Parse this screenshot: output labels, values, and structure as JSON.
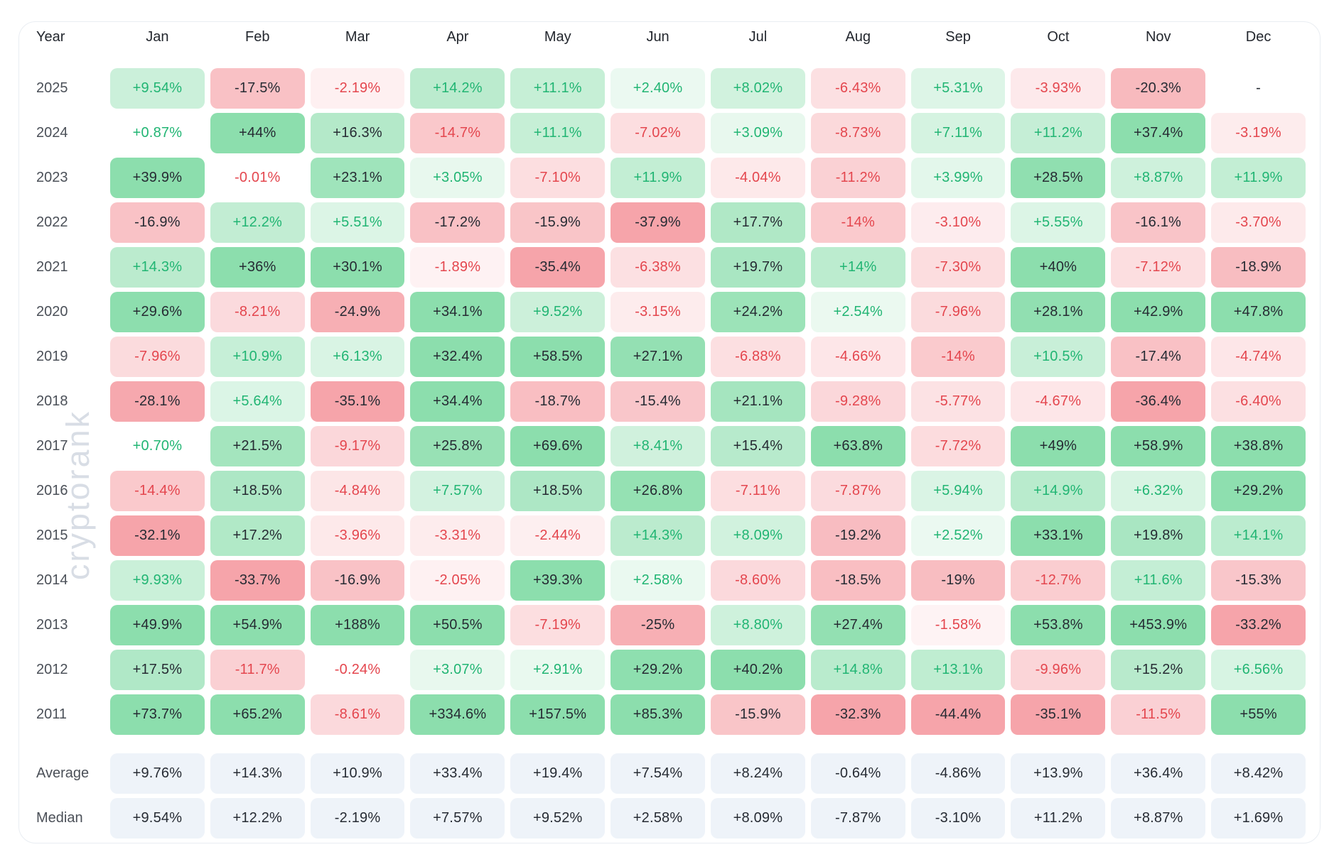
{
  "watermark": "cryptorank",
  "colors": {
    "positive_text": "#21b573",
    "negative_text": "#e4464e",
    "dark_text": "#262b33",
    "green_cap": "#8cdead",
    "red_cap": "#f6a4aa",
    "summary_bg": "#eef3f9",
    "summary_text": "#262b33",
    "header_text": "#23272e",
    "year_text": "#4b5058",
    "card_border": "#e9edf2",
    "watermark_color": "#d8dde5"
  },
  "chart_data": {
    "type": "heatmap",
    "title": "Monthly returns heatmap by year",
    "columns_label": "Year",
    "columns": [
      "Jan",
      "Feb",
      "Mar",
      "Apr",
      "May",
      "Jun",
      "Jul",
      "Aug",
      "Sep",
      "Oct",
      "Nov",
      "Dec"
    ],
    "rows": [
      {
        "year": "2025",
        "cells": [
          "+9.54%",
          "-17.5%",
          "-2.19%",
          "+14.2%",
          "+11.1%",
          "+2.40%",
          "+8.02%",
          "-6.43%",
          "+5.31%",
          "-3.93%",
          "-20.3%",
          "-"
        ]
      },
      {
        "year": "2024",
        "cells": [
          "+0.87%",
          "+44%",
          "+16.3%",
          "-14.7%",
          "+11.1%",
          "-7.02%",
          "+3.09%",
          "-8.73%",
          "+7.11%",
          "+11.2%",
          "+37.4%",
          "-3.19%"
        ]
      },
      {
        "year": "2023",
        "cells": [
          "+39.9%",
          "-0.01%",
          "+23.1%",
          "+3.05%",
          "-7.10%",
          "+11.9%",
          "-4.04%",
          "-11.2%",
          "+3.99%",
          "+28.5%",
          "+8.87%",
          "+11.9%"
        ]
      },
      {
        "year": "2022",
        "cells": [
          "-16.9%",
          "+12.2%",
          "+5.51%",
          "-17.2%",
          "-15.9%",
          "-37.9%",
          "+17.7%",
          "-14%",
          "-3.10%",
          "+5.55%",
          "-16.1%",
          "-3.70%"
        ]
      },
      {
        "year": "2021",
        "cells": [
          "+14.3%",
          "+36%",
          "+30.1%",
          "-1.89%",
          "-35.4%",
          "-6.38%",
          "+19.7%",
          "+14%",
          "-7.30%",
          "+40%",
          "-7.12%",
          "-18.9%"
        ]
      },
      {
        "year": "2020",
        "cells": [
          "+29.6%",
          "-8.21%",
          "-24.9%",
          "+34.1%",
          "+9.52%",
          "-3.15%",
          "+24.2%",
          "+2.54%",
          "-7.96%",
          "+28.1%",
          "+42.9%",
          "+47.8%"
        ]
      },
      {
        "year": "2019",
        "cells": [
          "-7.96%",
          "+10.9%",
          "+6.13%",
          "+32.4%",
          "+58.5%",
          "+27.1%",
          "-6.88%",
          "-4.66%",
          "-14%",
          "+10.5%",
          "-17.4%",
          "-4.74%"
        ]
      },
      {
        "year": "2018",
        "cells": [
          "-28.1%",
          "+5.64%",
          "-35.1%",
          "+34.4%",
          "-18.7%",
          "-15.4%",
          "+21.1%",
          "-9.28%",
          "-5.77%",
          "-4.67%",
          "-36.4%",
          "-6.40%"
        ]
      },
      {
        "year": "2017",
        "cells": [
          "+0.70%",
          "+21.5%",
          "-9.17%",
          "+25.8%",
          "+69.6%",
          "+8.41%",
          "+15.4%",
          "+63.8%",
          "-7.72%",
          "+49%",
          "+58.9%",
          "+38.8%"
        ]
      },
      {
        "year": "2016",
        "cells": [
          "-14.4%",
          "+18.5%",
          "-4.84%",
          "+7.57%",
          "+18.5%",
          "+26.8%",
          "-7.11%",
          "-7.87%",
          "+5.94%",
          "+14.9%",
          "+6.32%",
          "+29.2%"
        ]
      },
      {
        "year": "2015",
        "cells": [
          "-32.1%",
          "+17.2%",
          "-3.96%",
          "-3.31%",
          "-2.44%",
          "+14.3%",
          "+8.09%",
          "-19.2%",
          "+2.52%",
          "+33.1%",
          "+19.8%",
          "+14.1%"
        ]
      },
      {
        "year": "2014",
        "cells": [
          "+9.93%",
          "-33.7%",
          "-16.9%",
          "-2.05%",
          "+39.3%",
          "+2.58%",
          "-8.60%",
          "-18.5%",
          "-19%",
          "-12.7%",
          "+11.6%",
          "-15.3%"
        ]
      },
      {
        "year": "2013",
        "cells": [
          "+49.9%",
          "+54.9%",
          "+188%",
          "+50.5%",
          "-7.19%",
          "-25%",
          "+8.80%",
          "+27.4%",
          "-1.58%",
          "+53.8%",
          "+453.9%",
          "-33.2%"
        ]
      },
      {
        "year": "2012",
        "cells": [
          "+17.5%",
          "-11.7%",
          "-0.24%",
          "+3.07%",
          "+2.91%",
          "+29.2%",
          "+40.2%",
          "+14.8%",
          "+13.1%",
          "-9.96%",
          "+15.2%",
          "+6.56%"
        ]
      },
      {
        "year": "2011",
        "cells": [
          "+73.7%",
          "+65.2%",
          "-8.61%",
          "+334.6%",
          "+157.5%",
          "+85.3%",
          "-15.9%",
          "-32.3%",
          "-44.4%",
          "-35.1%",
          "-11.5%",
          "+55%"
        ]
      }
    ],
    "summary_rows": [
      {
        "label": "Average",
        "cells": [
          "+9.76%",
          "+14.3%",
          "+10.9%",
          "+33.4%",
          "+19.4%",
          "+7.54%",
          "+8.24%",
          "-0.64%",
          "-4.86%",
          "+13.9%",
          "+36.4%",
          "+8.42%"
        ]
      },
      {
        "label": "Median",
        "cells": [
          "+9.54%",
          "+12.2%",
          "-2.19%",
          "+7.57%",
          "+9.52%",
          "+2.58%",
          "+8.09%",
          "-7.87%",
          "-3.10%",
          "+11.2%",
          "+8.87%",
          "+1.69%"
        ]
      }
    ]
  }
}
